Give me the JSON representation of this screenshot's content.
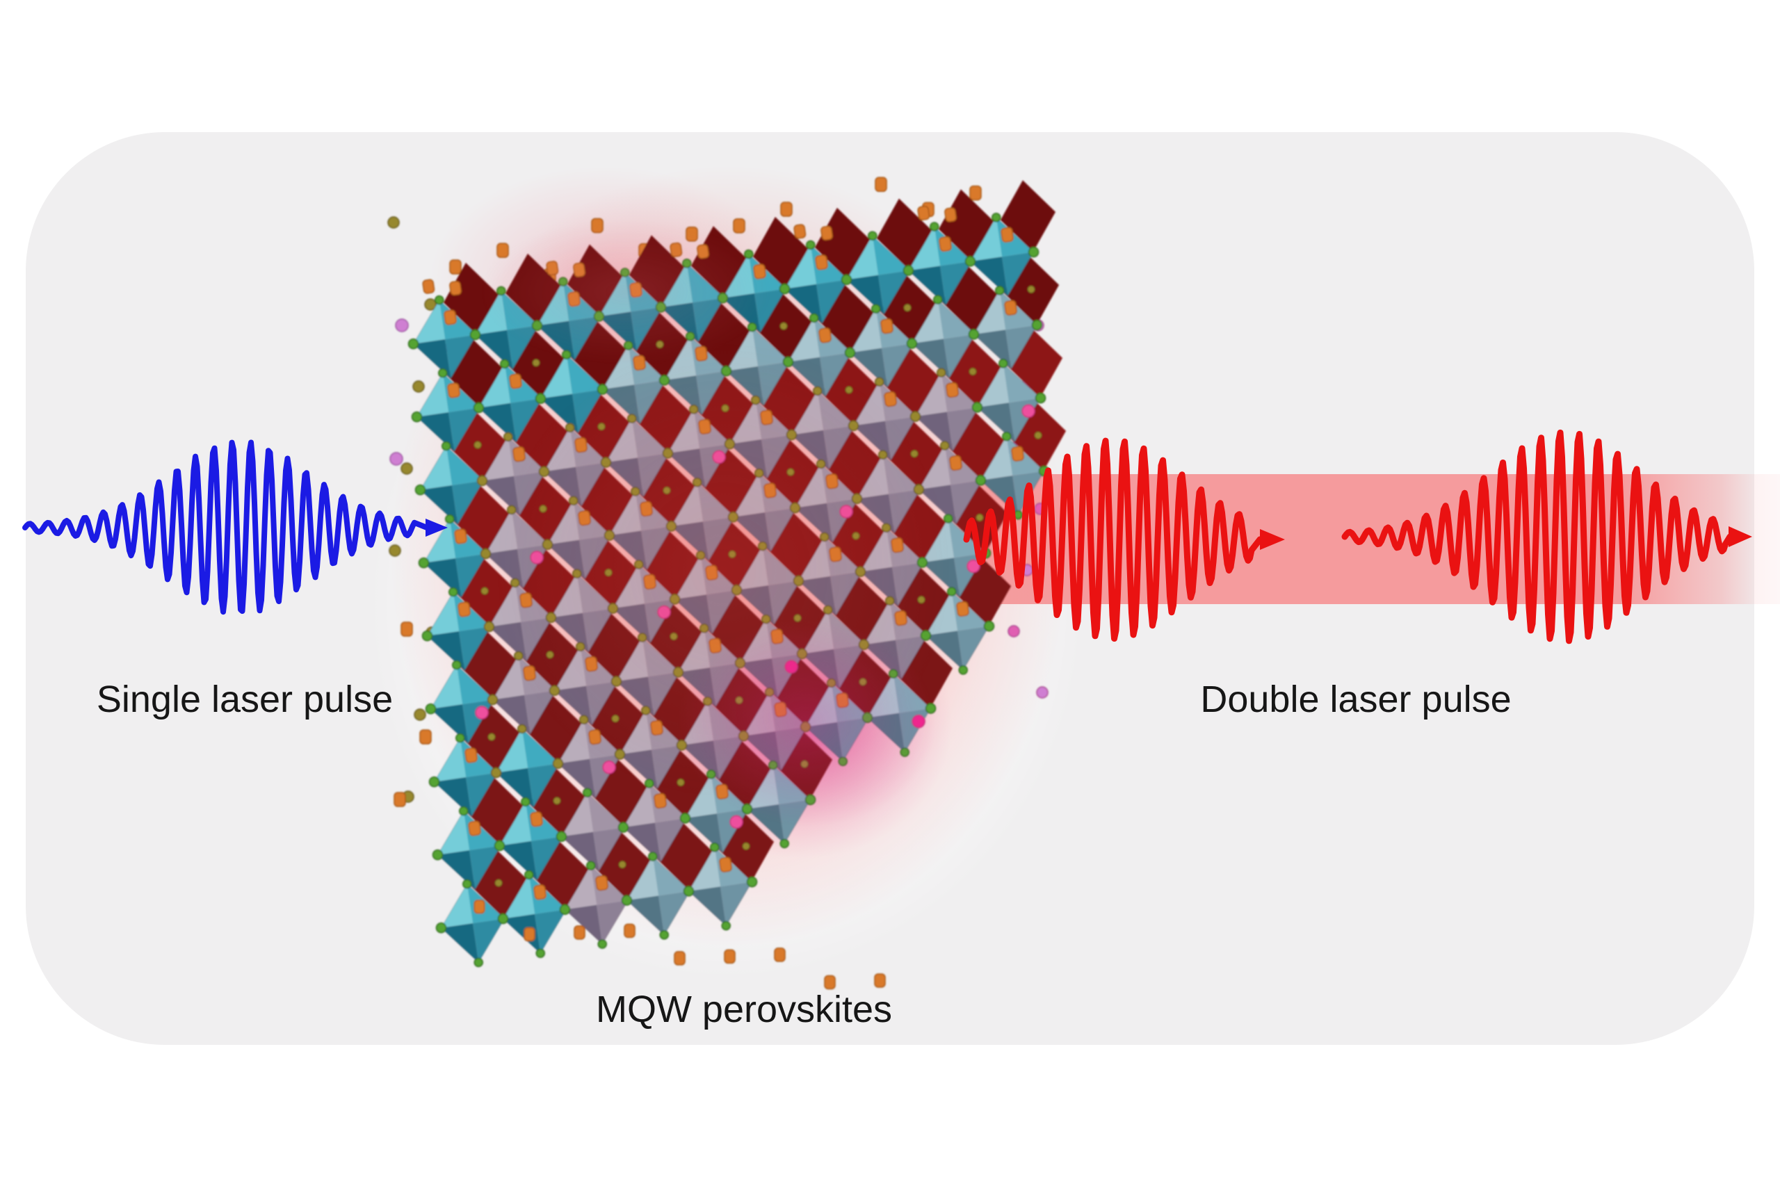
{
  "figure": {
    "labels": {
      "single_pulse": "Single laser pulse",
      "double_pulse": "Double laser pulse",
      "crystal": "MQW perovskites"
    }
  },
  "colors": {
    "background": "#ffffff",
    "panel": "#f0eff0",
    "beam_band": "#f59b9d",
    "single_pulse_blue": "#1b1be4",
    "double_pulse_red": "#ea1212",
    "text": "#161616",
    "glow_red": "#ec4b49",
    "glow_magenta": "#d6288c",
    "octahedron_teal_light": "#74cdd9",
    "octahedron_teal": "#41abc0",
    "octahedron_teal_dark": "#196981",
    "octahedron_gray_light": "#b9adbb",
    "octahedron_gray": "#a294a6",
    "octahedron_gray_dark": "#6f637b",
    "octahedron_tealgray_light": "#a9c6d0",
    "octahedron_tealgray": "#82a9b8",
    "octahedron_tealgray_dark": "#527485",
    "octahedron_back_red": "#8d1515",
    "sphere_green": "#55a331",
    "sphere_olive": "#97882e",
    "cation_orange": "#d9792a",
    "sphere_pink": "#ee4f9e",
    "sphere_magenta": "#f0288e",
    "sphere_violet": "#cf7fd2"
  }
}
